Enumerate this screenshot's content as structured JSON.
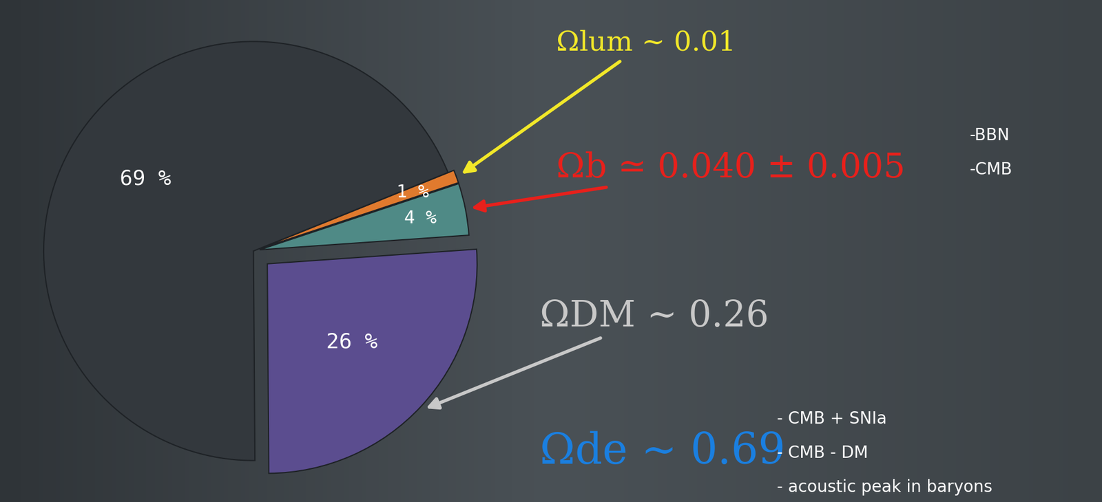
{
  "chart_data": {
    "type": "pie",
    "values": [
      1,
      4,
      26,
      69
    ],
    "value_labels": [
      "1 %",
      "4 %",
      "26 %",
      "69 %"
    ],
    "colors": [
      "#e07a2e",
      "#4f8a86",
      "#5b4d8f",
      "#33383d"
    ],
    "annotations": [
      {
        "text": "Ωlum ~ 0.01",
        "color": "#f2e829",
        "notes": []
      },
      {
        "text": "Ωb ≃ 0.040 ± 0.005",
        "color": "#e8201b",
        "notes": [
          "-BBN",
          "-CMB"
        ]
      },
      {
        "text": "ΩDM ~ 0.26",
        "color": "#c8c8c8",
        "notes": []
      },
      {
        "text": "Ωde ~ 0.69",
        "color": "#1a7fe0",
        "notes": [
          "- CMB + SNIa",
          "- CMB - DM",
          "- acoustic peak in baryons"
        ]
      }
    ]
  }
}
